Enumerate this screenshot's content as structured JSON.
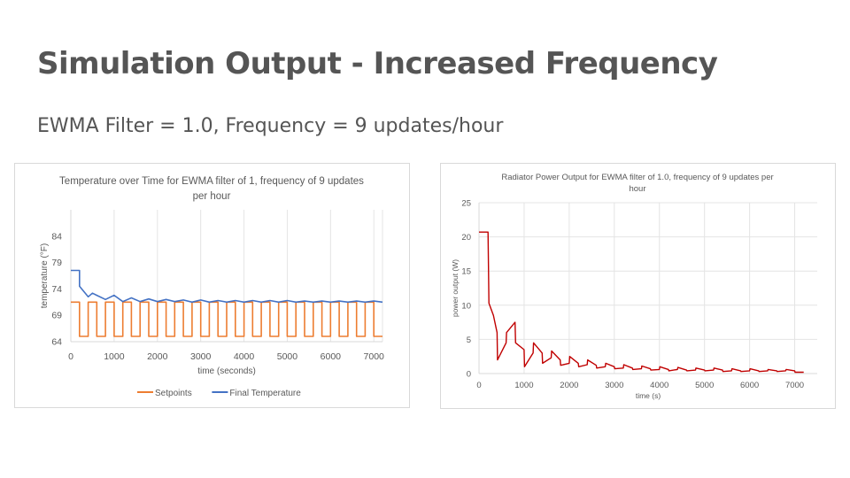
{
  "slide": {
    "title": "Simulation Output - Increased Frequency",
    "subtitle": "EWMA Filter = 1.0, Frequency = 9 updates/hour"
  },
  "chart_data": [
    {
      "type": "line",
      "title_lines": [
        "Temperature over Time for EWMA filter of 1, frequency of 9 updates",
        "per hour"
      ],
      "xlabel": "time (seconds)",
      "ylabel": "temperature (°F)",
      "xlim": [
        0,
        7200
      ],
      "ylim": [
        64,
        89
      ],
      "xticks": [
        0,
        1000,
        2000,
        3000,
        4000,
        5000,
        6000,
        7000
      ],
      "yticks": [
        64,
        69,
        74,
        79,
        84
      ],
      "grid": "vertical",
      "legend_position": "bottom",
      "series": [
        {
          "name": "Setpoints",
          "color": "#ED7D31",
          "x": [
            0,
            200,
            200,
            400,
            400,
            600,
            600,
            800,
            800,
            1000,
            1000,
            1200,
            1200,
            1400,
            1400,
            1600,
            1600,
            1800,
            1800,
            2000,
            2000,
            2200,
            2200,
            2400,
            2400,
            2600,
            2600,
            2800,
            2800,
            3000,
            3000,
            3200,
            3200,
            3400,
            3400,
            3600,
            3600,
            3800,
            3800,
            4000,
            4000,
            4200,
            4200,
            4400,
            4400,
            4600,
            4600,
            4800,
            4800,
            5000,
            5000,
            5200,
            5200,
            5400,
            5400,
            5600,
            5600,
            5800,
            5800,
            6000,
            6000,
            6200,
            6200,
            6400,
            6400,
            6600,
            6600,
            6800,
            6800,
            7000,
            7000,
            7200
          ],
          "y": [
            71.5,
            71.5,
            65,
            65,
            71.5,
            71.5,
            65,
            65,
            71.5,
            71.5,
            65,
            65,
            71.5,
            71.5,
            65,
            65,
            71.5,
            71.5,
            65,
            65,
            71.5,
            71.5,
            65,
            65,
            71.5,
            71.5,
            65,
            65,
            71.5,
            71.5,
            65,
            65,
            71.5,
            71.5,
            65,
            65,
            71.5,
            71.5,
            65,
            65,
            71.5,
            71.5,
            65,
            65,
            71.5,
            71.5,
            65,
            65,
            71.5,
            71.5,
            65,
            65,
            71.5,
            71.5,
            65,
            65,
            71.5,
            71.5,
            65,
            65,
            71.5,
            71.5,
            65,
            65,
            71.5,
            71.5,
            65,
            65,
            71.5,
            71.5,
            65,
            65
          ]
        },
        {
          "name": "Final Temperature",
          "color": "#4472C4",
          "x": [
            0,
            200,
            200,
            400,
            500,
            600,
            800,
            1000,
            1200,
            1400,
            1600,
            1800,
            2000,
            2200,
            2400,
            2600,
            2800,
            3000,
            3200,
            3400,
            3600,
            3800,
            4000,
            4200,
            4400,
            4600,
            4800,
            5000,
            5200,
            5400,
            5600,
            5800,
            6000,
            6200,
            6400,
            6600,
            6800,
            7000,
            7200
          ],
          "y": [
            77.5,
            77.5,
            74.5,
            72.5,
            73.2,
            72.8,
            72,
            72.8,
            71.6,
            72.3,
            71.6,
            72.1,
            71.6,
            72,
            71.6,
            71.9,
            71.5,
            71.9,
            71.5,
            71.8,
            71.5,
            71.8,
            71.5,
            71.8,
            71.5,
            71.8,
            71.5,
            71.8,
            71.5,
            71.7,
            71.5,
            71.7,
            71.5,
            71.7,
            71.5,
            71.7,
            71.5,
            71.7,
            71.5
          ]
        }
      ]
    },
    {
      "type": "line",
      "title_lines": [
        "Radiator Power Output for EWMA filter of 1.0, frequency of 9 updates per",
        "hour"
      ],
      "xlabel": "time (s)",
      "ylabel": "power output (W)",
      "xlim": [
        0,
        7500
      ],
      "ylim": [
        0,
        25
      ],
      "xticks": [
        0,
        1000,
        2000,
        3000,
        4000,
        5000,
        6000,
        7000
      ],
      "yticks": [
        0,
        5,
        10,
        15,
        20,
        25
      ],
      "grid": "both",
      "series": [
        {
          "color": "#C00000",
          "x": [
            0,
            200,
            220,
            320,
            400,
            410,
            600,
            610,
            800,
            810,
            1000,
            1010,
            1200,
            1210,
            1400,
            1410,
            1600,
            1610,
            1800,
            1810,
            2000,
            2010,
            2200,
            2210,
            2400,
            2410,
            2600,
            2610,
            2800,
            2810,
            3000,
            3010,
            3200,
            3210,
            3400,
            3410,
            3600,
            3610,
            3800,
            3810,
            4000,
            4010,
            4200,
            4210,
            4400,
            4410,
            4600,
            4610,
            4800,
            4810,
            5000,
            5010,
            5200,
            5210,
            5400,
            5410,
            5600,
            5610,
            5800,
            5810,
            6000,
            6010,
            6200,
            6210,
            6400,
            6410,
            6600,
            6610,
            6800,
            6810,
            7000,
            7010,
            7200
          ],
          "y": [
            20.7,
            20.7,
            10.3,
            8.5,
            6,
            2,
            4.5,
            6,
            7.5,
            4.5,
            3.5,
            1,
            3,
            4.5,
            3,
            1.5,
            2.3,
            3.3,
            2,
            1.2,
            1.5,
            2.5,
            1.5,
            1,
            1.3,
            2,
            1.2,
            0.8,
            1,
            1.5,
            1,
            0.7,
            0.8,
            1.3,
            0.8,
            0.6,
            0.7,
            1.1,
            0.7,
            0.5,
            0.6,
            1,
            0.6,
            0.4,
            0.6,
            0.9,
            0.5,
            0.4,
            0.5,
            0.8,
            0.5,
            0.4,
            0.5,
            0.8,
            0.5,
            0.3,
            0.4,
            0.7,
            0.4,
            0.3,
            0.4,
            0.7,
            0.4,
            0.3,
            0.4,
            0.6,
            0.4,
            0.3,
            0.4,
            0.6,
            0.4,
            0.2,
            0.2
          ]
        }
      ]
    }
  ]
}
